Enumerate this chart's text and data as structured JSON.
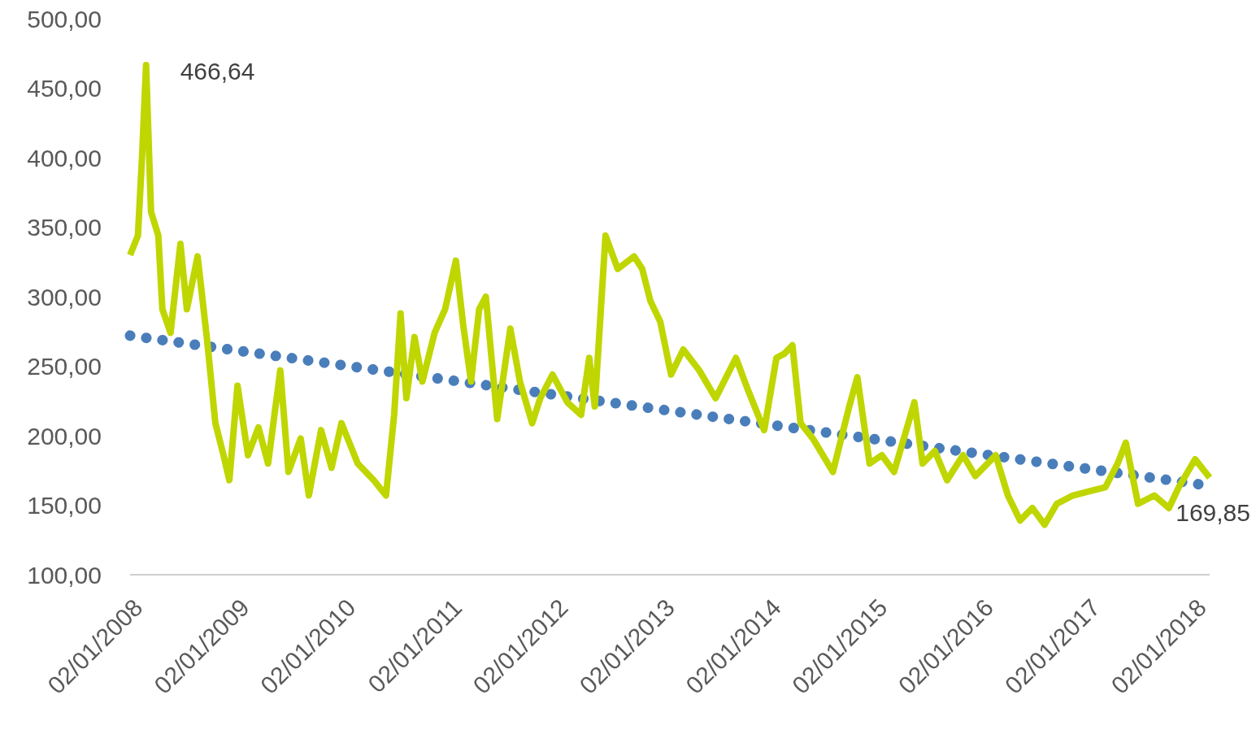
{
  "chart_data": {
    "type": "line",
    "xlim": [
      "2008-01-02",
      "2018-02-26"
    ],
    "xticks": [
      {
        "value": "2008-01-02",
        "label": "02/01/2008"
      },
      {
        "value": "2009-01-02",
        "label": "02/01/2009"
      },
      {
        "value": "2010-01-02",
        "label": "02/01/2010"
      },
      {
        "value": "2011-01-02",
        "label": "02/01/2011"
      },
      {
        "value": "2012-01-02",
        "label": "02/01/2012"
      },
      {
        "value": "2013-01-02",
        "label": "02/01/2013"
      },
      {
        "value": "2014-01-02",
        "label": "02/01/2014"
      },
      {
        "value": "2015-01-02",
        "label": "02/01/2015"
      },
      {
        "value": "2016-01-02",
        "label": "02/01/2016"
      },
      {
        "value": "2017-01-02",
        "label": "02/01/2017"
      },
      {
        "value": "2018-01-02",
        "label": "02/01/2018"
      }
    ],
    "ylim": [
      100,
      500
    ],
    "yticks": [
      {
        "value": 100,
        "label": "100,00"
      },
      {
        "value": 150,
        "label": "150,00"
      },
      {
        "value": 200,
        "label": "200,00"
      },
      {
        "value": 250,
        "label": "250,00"
      },
      {
        "value": 300,
        "label": "300,00"
      },
      {
        "value": 350,
        "label": "350,00"
      },
      {
        "value": 400,
        "label": "400,00"
      },
      {
        "value": 450,
        "label": "450,00"
      },
      {
        "value": 500,
        "label": "500,00"
      }
    ],
    "grid": false,
    "series": [
      {
        "color": "#bfd600",
        "line_style": "solid",
        "x": [
          "2008-01-02",
          "2008-01-29",
          "2008-02-12",
          "2008-02-26",
          "2008-03-14",
          "2008-04-08",
          "2008-04-22",
          "2008-05-20",
          "2008-06-23",
          "2008-07-15",
          "2008-08-21",
          "2008-09-23",
          "2008-10-21",
          "2008-11-18",
          "2008-12-08",
          "2009-01-05",
          "2009-02-10",
          "2009-03-18",
          "2009-04-20",
          "2009-06-01",
          "2009-06-29",
          "2009-08-10",
          "2009-09-07",
          "2009-10-19",
          "2009-11-24",
          "2009-12-28",
          "2010-02-22",
          "2010-04-18",
          "2010-05-30",
          "2010-06-27",
          "2010-07-19",
          "2010-08-08",
          "2010-09-05",
          "2010-10-02",
          "2010-11-13",
          "2010-12-19",
          "2011-01-25",
          "2011-02-19",
          "2011-03-18",
          "2011-04-15",
          "2011-05-08",
          "2011-06-16",
          "2011-07-31",
          "2011-09-02",
          "2011-10-14",
          "2011-11-11",
          "2011-12-23",
          "2012-02-12",
          "2012-03-30",
          "2012-04-27",
          "2012-05-16",
          "2012-06-22",
          "2012-08-03",
          "2012-09-28",
          "2012-10-26",
          "2012-11-23",
          "2012-12-27",
          "2013-02-02",
          "2013-03-16",
          "2013-05-10",
          "2013-07-05",
          "2013-09-13",
          "2013-10-24",
          "2013-12-19",
          "2014-01-30",
          "2014-02-26",
          "2014-03-26",
          "2014-04-23",
          "2014-06-04",
          "2014-08-12",
          "2014-10-07",
          "2014-11-04",
          "2014-12-16",
          "2015-01-27",
          "2015-03-10",
          "2015-05-19",
          "2015-06-16",
          "2015-07-28",
          "2015-09-08",
          "2015-11-02",
          "2015-12-14",
          "2016-02-22",
          "2016-04-04",
          "2016-05-16",
          "2016-06-27",
          "2016-08-08",
          "2016-09-19",
          "2016-11-13",
          "2017-01-08",
          "2017-03-05",
          "2017-04-16",
          "2017-05-14",
          "2017-06-25",
          "2017-08-20",
          "2017-10-09",
          "2017-11-12",
          "2018-01-07",
          "2018-02-26"
        ],
        "values": [
          330,
          344,
          400,
          466.64,
          361,
          344,
          291,
          274,
          338,
          291,
          329,
          268,
          209,
          186,
          168,
          236,
          186,
          206,
          180,
          247,
          174,
          198,
          157,
          204,
          177,
          209,
          180,
          168,
          157,
          215,
          288,
          227,
          271,
          239,
          274,
          291,
          326,
          280,
          239,
          291,
          300,
          212,
          277,
          239,
          209,
          227,
          244,
          224,
          215,
          256,
          221,
          344,
          320,
          329,
          320,
          297,
          282,
          244,
          262,
          247,
          227,
          256,
          233,
          204,
          256,
          259,
          265,
          209,
          198,
          174,
          221,
          242,
          180,
          186,
          174,
          224,
          180,
          189,
          168,
          186,
          171,
          186,
          157,
          139,
          148,
          136,
          151,
          157,
          160,
          163,
          180,
          195,
          151,
          157,
          148,
          163,
          183,
          169.85
        ]
      },
      {
        "color": "#4a7ebb",
        "line_style": "dotted",
        "x": [
          "2008-01-02",
          "2013-01-27",
          "2018-02-26"
        ],
        "values": [
          272,
          218,
          164
        ]
      }
    ],
    "annotations": [
      {
        "text": "466,64",
        "x": "2008-02-26",
        "y": 466.64
      },
      {
        "text": "169,85",
        "x": "2018-02-26",
        "y": 169.85
      }
    ]
  }
}
